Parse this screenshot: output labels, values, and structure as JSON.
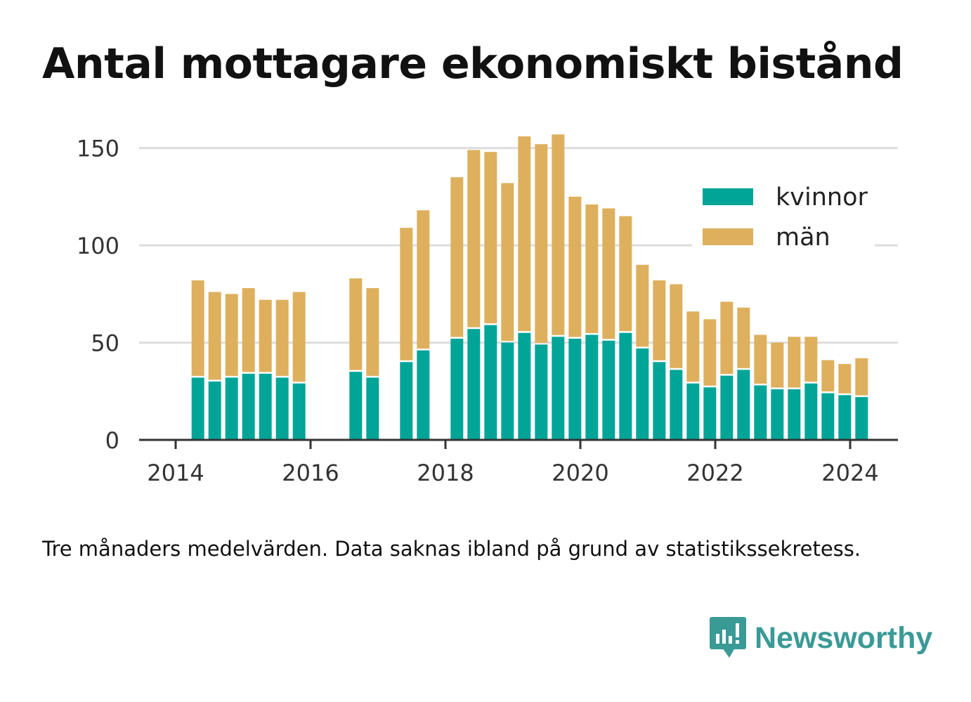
{
  "title": "Antal mottagare ekonomiskt bistånd",
  "caption": "Tre månaders medelvärden. Data saknas ibland på grund av statistikssekretess.",
  "brand": {
    "name": "Newsworthy",
    "icon": "newsworthy-logo-icon"
  },
  "colors": {
    "kvinnor": "#00a598",
    "man": "#deb05d",
    "grid": "#dddddd",
    "axis": "#333333"
  },
  "chart_data": {
    "type": "bar",
    "stacked": true,
    "grid": true,
    "legend_position": "top-right",
    "ylim": [
      0,
      160
    ],
    "yticks": [
      0,
      50,
      100,
      150
    ],
    "xlim": [
      2013.5,
      2024.6
    ],
    "xticks": [
      2014,
      2016,
      2018,
      2020,
      2022,
      2024
    ],
    "x": [
      2014.33,
      2014.58,
      2014.83,
      2015.08,
      2015.33,
      2015.58,
      2015.83,
      2016.67,
      2016.92,
      2017.42,
      2017.67,
      2017.92,
      2018.17,
      2018.42,
      2018.67,
      2018.92,
      2019.17,
      2019.42,
      2019.67,
      2019.92,
      2020.17,
      2020.42,
      2020.67,
      2020.92,
      2021.17,
      2021.42,
      2021.67,
      2021.92,
      2022.17,
      2022.42,
      2022.67,
      2022.92,
      2023.17,
      2023.42,
      2023.67,
      2023.92,
      2024.17
    ],
    "series": [
      {
        "name": "kvinnor",
        "values": [
          32,
          30,
          32,
          34,
          34,
          32,
          29,
          35,
          32,
          40,
          46,
          0,
          52,
          57,
          59,
          50,
          55,
          49,
          53,
          52,
          54,
          51,
          55,
          47,
          40,
          36,
          29,
          27,
          33,
          36,
          28,
          26,
          26,
          29,
          24,
          23,
          22
        ]
      },
      {
        "name": "män",
        "values": [
          50,
          46,
          43,
          44,
          38,
          40,
          47,
          48,
          46,
          69,
          72,
          0,
          83,
          92,
          89,
          82,
          101,
          103,
          104,
          73,
          67,
          68,
          60,
          43,
          42,
          44,
          37,
          35,
          38,
          32,
          26,
          24,
          27,
          24,
          17,
          16,
          20
        ]
      }
    ]
  }
}
